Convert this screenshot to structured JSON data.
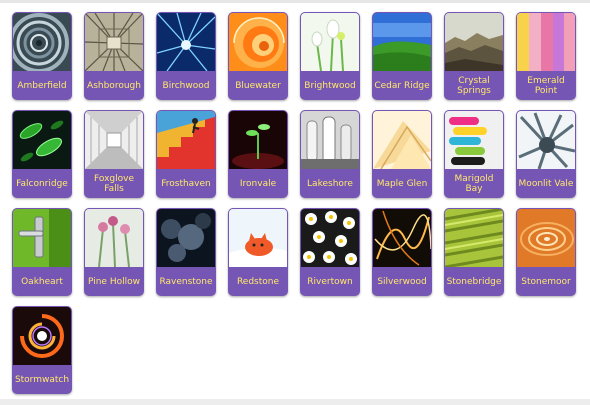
{
  "gallery": {
    "items": [
      {
        "label": "Amberfield",
        "icon": "spiral-tunnel-thumbnail"
      },
      {
        "label": "Ashborough",
        "icon": "cage-perspective-thumbnail"
      },
      {
        "label": "Birchwood",
        "icon": "blue-rays-thumbnail"
      },
      {
        "label": "Bluewater",
        "icon": "orange-shell-thumbnail"
      },
      {
        "label": "Brightwood",
        "icon": "white-flowers-thumbnail"
      },
      {
        "label": "Cedar Ridge",
        "icon": "green-hills-thumbnail"
      },
      {
        "label": "Crystal Springs",
        "icon": "rocky-landscape-thumbnail"
      },
      {
        "label": "Emerald Point",
        "icon": "color-blur-thumbnail"
      },
      {
        "label": "Falconridge",
        "icon": "green-cells-thumbnail"
      },
      {
        "label": "Foxglove Falls",
        "icon": "white-corridor-thumbnail"
      },
      {
        "label": "Frosthaven",
        "icon": "stairs-figures-thumbnail"
      },
      {
        "label": "Ironvale",
        "icon": "dark-sprout-thumbnail"
      },
      {
        "label": "Lakeshore",
        "icon": "glass-figures-thumbnail"
      },
      {
        "label": "Maple Glen",
        "icon": "cream-abstract-thumbnail"
      },
      {
        "label": "Marigold Bay",
        "icon": "colored-tubes-thumbnail"
      },
      {
        "label": "Moonlit Vale",
        "icon": "spiky-object-thumbnail"
      },
      {
        "label": "Oakheart",
        "icon": "door-handle-thumbnail"
      },
      {
        "label": "Pine Hollow",
        "icon": "pink-plants-thumbnail"
      },
      {
        "label": "Ravenstone",
        "icon": "dark-foliage-thumbnail"
      },
      {
        "label": "Redstone",
        "icon": "red-cat-thumbnail"
      },
      {
        "label": "Rivertown",
        "icon": "daisy-pattern-thumbnail"
      },
      {
        "label": "Silverwood",
        "icon": "light-trails-thumbnail"
      },
      {
        "label": "Stonebridge",
        "icon": "green-grass-thumbnail"
      },
      {
        "label": "Stonemoor",
        "icon": "orange-ripples-thumbnail"
      },
      {
        "label": "Stormwatch",
        "icon": "swirl-vortex-thumbnail"
      }
    ]
  }
}
